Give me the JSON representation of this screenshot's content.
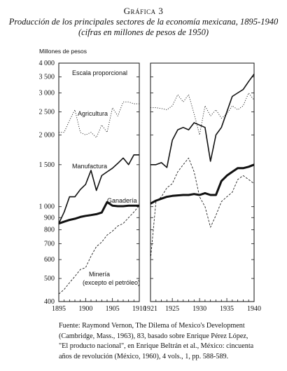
{
  "header": {
    "figure_label": "Gráfica 3",
    "title": "Producción de los principales sectores de la economía mexicana, 1895-1940",
    "subtitle": "(cifras en millones de pesos de 1950)"
  },
  "source": {
    "lines": [
      "Fuente: Raymond Vernon, The Dilema of Mexico's Development",
      "(Cambridge, Mass., 1963), 83, basado sobre Enrique Pérez López,",
      "\"El producto nacional\", en Enrique Beltrán et al., México: cincuenta",
      "años de revolución (México, 1960), 4 vols., 1, pp. 588-589."
    ]
  },
  "chart_data": {
    "type": "line",
    "title": "",
    "ylabel": "Millones de pesos",
    "note": "Escala proporcional",
    "y_scale": "log",
    "ylim": [
      400,
      4000
    ],
    "y_ticks": [
      400,
      500,
      600,
      700,
      800,
      900,
      1000,
      1500,
      2000,
      2500,
      3000,
      3500,
      4000
    ],
    "y_tick_labels": [
      "400",
      "500",
      "600",
      "700",
      "800",
      "900",
      "1 000",
      "1 500",
      "2 000",
      "2 500",
      "3 000",
      "3 500",
      "4 000"
    ],
    "panels": [
      {
        "xlim": [
          1895,
          1910
        ],
        "x_ticks": [
          1895,
          1900,
          1905,
          1910
        ],
        "series": [
          {
            "name": "Agricultura",
            "style": "dotted",
            "x": [
              1895,
              1896,
              1897,
              1898,
              1899,
              1900,
              1901,
              1902,
              1903,
              1904,
              1905,
              1906,
              1907,
              1908,
              1909,
              1910
            ],
            "y": [
              2050,
              2050,
              2300,
              2550,
              2050,
              2000,
              2050,
              1950,
              2200,
              2050,
              2600,
              2400,
              2750,
              2750,
              2700,
              2700
            ]
          },
          {
            "name": "Manufactura",
            "style": "solid",
            "x": [
              1895,
              1896,
              1897,
              1898,
              1899,
              1900,
              1901,
              1902,
              1903,
              1904,
              1905,
              1906,
              1907,
              1908,
              1909,
              1910
            ],
            "y": [
              850,
              950,
              1100,
              1100,
              1180,
              1240,
              1420,
              1170,
              1350,
              1400,
              1450,
              1520,
              1600,
              1500,
              1650,
              1650
            ]
          },
          {
            "name": "Ganadería",
            "style": "bold",
            "x": [
              1895,
              1896,
              1897,
              1898,
              1899,
              1900,
              1901,
              1902,
              1903,
              1904,
              1905,
              1906,
              1907,
              1908,
              1909,
              1910
            ],
            "y": [
              850,
              865,
              880,
              890,
              905,
              915,
              922,
              930,
              945,
              1045,
              1010,
              1005,
              1005,
              1010,
              1010,
              1010
            ]
          },
          {
            "name": "Minería (excepto el petróleo)",
            "style": "dashed",
            "x": [
              1895,
              1896,
              1897,
              1898,
              1899,
              1900,
              1901,
              1902,
              1903,
              1904,
              1905,
              1906,
              1907,
              1908,
              1909,
              1910
            ],
            "y": [
              430,
              450,
              480,
              510,
              545,
              555,
              620,
              680,
              710,
              760,
              790,
              830,
              850,
              900,
              950,
              1010
            ]
          }
        ]
      },
      {
        "xlim": [
          1921,
          1940
        ],
        "x_ticks": [
          1921,
          1925,
          1930,
          1935,
          1940
        ],
        "series": [
          {
            "name": "Agricultura",
            "style": "dotted",
            "x": [
              1921,
              1922,
              1923,
              1924,
              1925,
              1926,
              1927,
              1928,
              1929,
              1930,
              1931,
              1932,
              1933,
              1934,
              1935,
              1936,
              1937,
              1938,
              1939,
              1940
            ],
            "y": [
              2600,
              2600,
              2580,
              2550,
              2650,
              2950,
              2750,
              2950,
              2450,
              2000,
              2650,
              2400,
              2550,
              2350,
              2450,
              2650,
              2550,
              2650,
              3000,
              2800
            ]
          },
          {
            "name": "Manufactura",
            "style": "solid",
            "x": [
              1921,
              1922,
              1923,
              1924,
              1925,
              1926,
              1927,
              1928,
              1929,
              1930,
              1931,
              1932,
              1933,
              1934,
              1935,
              1936,
              1937,
              1938,
              1939,
              1940
            ],
            "y": [
              1500,
              1500,
              1530,
              1460,
              1900,
              2100,
              2150,
              2100,
              2250,
              2200,
              2150,
              1550,
              2000,
              2150,
              2500,
              2900,
              3000,
              3100,
              3350,
              3600
            ]
          },
          {
            "name": "Ganadería",
            "style": "bold",
            "x": [
              1921,
              1922,
              1923,
              1924,
              1925,
              1926,
              1927,
              1928,
              1929,
              1930,
              1931,
              1932,
              1933,
              1934,
              1935,
              1936,
              1937,
              1938,
              1939,
              1940
            ],
            "y": [
              1030,
              1060,
              1080,
              1100,
              1110,
              1115,
              1120,
              1120,
              1130,
              1120,
              1140,
              1120,
              1120,
              1280,
              1350,
              1400,
              1450,
              1450,
              1470,
              1500
            ]
          },
          {
            "name": "Minería (excepto el petróleo)",
            "style": "dashed",
            "x": [
              1921,
              1922,
              1923,
              1924,
              1925,
              1926,
              1927,
              1928,
              1929,
              1930,
              1931,
              1932,
              1933,
              1934,
              1935,
              1936,
              1937,
              1938,
              1939,
              1940
            ],
            "y": [
              600,
              1050,
              1100,
              1200,
              1250,
              1400,
              1500,
              1600,
              1400,
              1100,
              1000,
              820,
              920,
              1050,
              1100,
              1150,
              1300,
              1350,
              1300,
              1250
            ]
          }
        ]
      }
    ],
    "labels": [
      "Agricultura",
      "Manufactura",
      "Ganadería",
      "Minería",
      "(excepto el petróleo)"
    ]
  }
}
